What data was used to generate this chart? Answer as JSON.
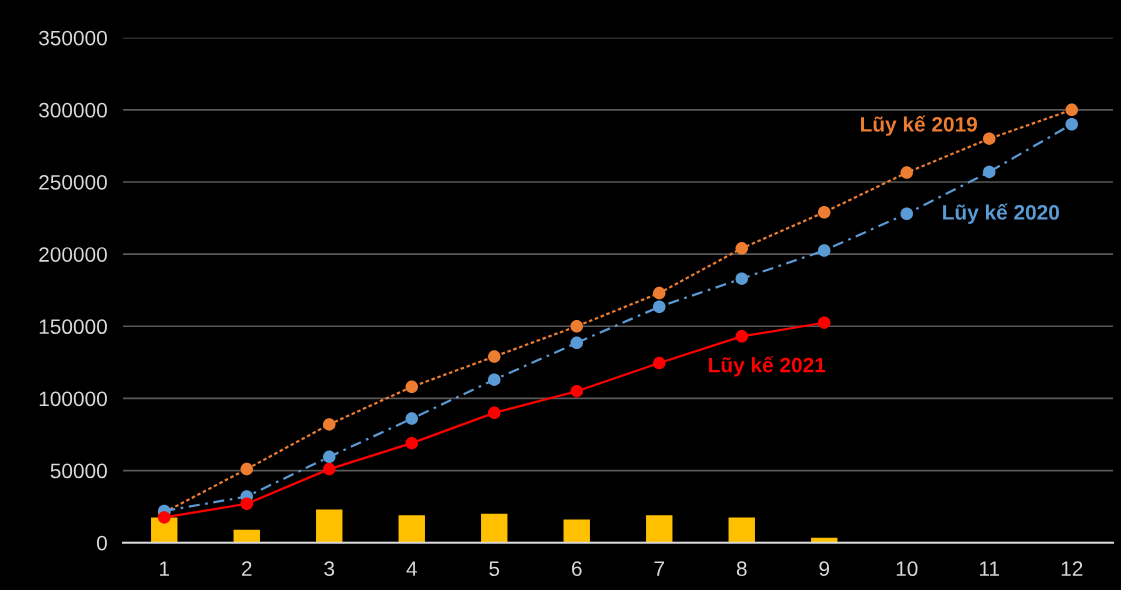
{
  "chart_data": {
    "type": "line",
    "categories": [
      "1",
      "2",
      "3",
      "4",
      "5",
      "6",
      "7",
      "8",
      "9",
      "10",
      "11",
      "12"
    ],
    "ylim": [
      0,
      350000
    ],
    "yticks": [
      0,
      50000,
      100000,
      150000,
      200000,
      250000,
      300000,
      350000
    ],
    "grid": "y",
    "marker": "circle",
    "series": [
      {
        "type": "bar",
        "color": "#ffc000",
        "values": [
          17500,
          9000,
          23000,
          19000,
          20000,
          16000,
          19000,
          17500,
          3500,
          null,
          null,
          null
        ]
      },
      {
        "name": "Lũy kế 2019",
        "color": "#ed7d31",
        "line_style": "dotted",
        "values": [
          21000,
          51000,
          82000,
          108000,
          129000,
          150000,
          173000,
          204000,
          229000,
          256500,
          280000,
          300000
        ]
      },
      {
        "name": "Lũy kế 2020",
        "color": "#5b9bd5",
        "line_style": "dashdot",
        "values": [
          22000,
          32000,
          59500,
          86000,
          113000,
          138500,
          163500,
          183000,
          202500,
          228000,
          257000,
          290000
        ]
      },
      {
        "name": "Lũy kế 2021",
        "color": "#ff0000",
        "line_style": "solid",
        "values": [
          17500,
          27000,
          51000,
          69000,
          90000,
          105000,
          124500,
          143000,
          152500,
          null,
          null,
          null
        ]
      }
    ]
  }
}
